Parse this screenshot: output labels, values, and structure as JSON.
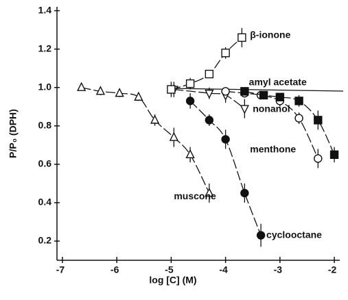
{
  "chart_data": {
    "type": "scatter",
    "xlabel": "log [C]  (M)",
    "ylabel": "P/P₀  (DPH)",
    "xlim": [
      -7.1,
      -1.9
    ],
    "ylim": [
      0.1,
      1.42
    ],
    "xticks": [
      -7,
      -6,
      -5,
      -4,
      -3,
      -2
    ],
    "yticks": [
      0.2,
      0.4,
      0.6,
      {
        "value": 0.8,
        "label": "0.8"
      },
      {
        "value": 1,
        "label": "1.0"
      },
      1.2,
      1.4
    ],
    "color": "#111111",
    "series": [
      {
        "name": "muscone",
        "marker": "triangle-up",
        "filled": false,
        "x": [
          -6.65,
          -6.3,
          -5.95,
          -5.6,
          -5.3,
          -4.95,
          -4.65,
          -4.3
        ],
        "values": [
          1.0,
          0.98,
          0.97,
          0.95,
          0.83,
          0.74,
          0.65,
          0.45
        ],
        "errors": [
          0.01,
          0.02,
          0.02,
          0.02,
          0.03,
          0.05,
          0.04,
          0.05
        ]
      },
      {
        "name": "cyclooctane",
        "marker": "circle",
        "filled": true,
        "x": [
          -4.65,
          -4.3,
          -4.0,
          -3.65,
          -3.35
        ],
        "values": [
          0.93,
          0.83,
          0.73,
          0.45,
          0.23
        ],
        "errors": [
          0.04,
          0.03,
          0.05,
          0.05,
          0.06
        ]
      },
      {
        "name": "nonanol",
        "marker": "triangle-down",
        "filled": false,
        "x": [
          -4.95,
          -4.3,
          -4.0,
          -3.65
        ],
        "values": [
          0.99,
          0.97,
          0.96,
          0.89
        ],
        "errors": [
          0.04,
          0.03,
          0.04,
          0.05
        ]
      },
      {
        "name": "menthone",
        "marker": "circle",
        "filled": false,
        "x": [
          -4.0,
          -3.65,
          -3.35,
          -3.0,
          -2.65,
          -2.3
        ],
        "values": [
          0.98,
          0.97,
          0.96,
          0.93,
          0.84,
          0.63
        ],
        "errors": [
          0.02,
          0.02,
          0.02,
          0.03,
          0.03,
          0.05
        ]
      },
      {
        "name": "amyl acetate",
        "marker": "square",
        "filled": true,
        "x": [
          -3.65,
          -3.3,
          -3.0,
          -2.65,
          -2.3,
          -2.0
        ],
        "values": [
          0.98,
          0.96,
          0.95,
          0.93,
          0.83,
          0.65
        ],
        "errors": [
          0.02,
          0.02,
          0.02,
          0.03,
          0.05,
          0.04
        ]
      },
      {
        "name": "β-ionone",
        "marker": "square",
        "filled": false,
        "x": [
          -5.0,
          -4.65,
          -4.3,
          -4.0,
          -3.7
        ],
        "values": [
          0.99,
          1.02,
          1.07,
          1.18,
          1.26
        ],
        "errors": [
          0.04,
          0.03,
          0.02,
          0.03,
          0.05
        ]
      }
    ]
  }
}
